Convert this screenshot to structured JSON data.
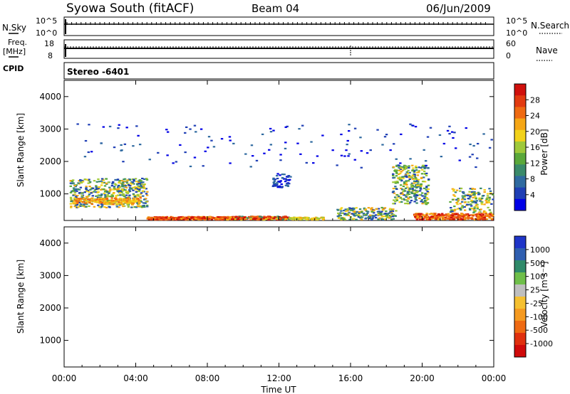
{
  "header": {
    "title": "Syowa South (fitACF)",
    "beam": "Beam 04",
    "date": "06/Jun/2009"
  },
  "top_panels": {
    "nsky_label": "N.Sky",
    "nsearch_label": "N.Search",
    "freq_label": "Freq.",
    "freq_unit": "[MHz]",
    "nave_label": "Nave",
    "cpid_label": "CPID",
    "cpid_value": "Stereo -6401",
    "nsky_ticks": [
      "10^5",
      "10^0"
    ],
    "nsearch_ticks": [
      "10^5",
      "10^0"
    ],
    "freq_ticks": [
      "18",
      "8"
    ],
    "nave_ticks": [
      "60",
      "0"
    ]
  },
  "chart_data": [
    {
      "type": "heatmap",
      "name": "power-panel",
      "ylabel": "Slant Range [km]",
      "xlim": [
        0,
        24
      ],
      "ylim": [
        180,
        4500
      ],
      "yticks": [
        1000,
        2000,
        3000,
        4000
      ],
      "colorbar": {
        "label": "Power [dB]",
        "ticks": [
          "4",
          "8",
          "12",
          "16",
          "20",
          "24",
          "28"
        ],
        "colors": [
          "#0000e6",
          "#1f3fb5",
          "#2f6aa0",
          "#3a8a6a",
          "#5aa83a",
          "#9fc93a",
          "#f2d21a",
          "#f5a615",
          "#ef6a12",
          "#e23a10",
          "#d0100c"
        ]
      }
    },
    {
      "type": "heatmap",
      "name": "velocity-panel",
      "ylabel": "Slant Range [km]",
      "xlabel": "Time UT",
      "xlim": [
        0,
        24
      ],
      "ylim": [
        180,
        4500
      ],
      "yticks": [
        1000,
        2000,
        3000,
        4000
      ],
      "xticks": [
        "00:00",
        "04:00",
        "08:00",
        "12:00",
        "16:00",
        "20:00",
        "00:00"
      ],
      "colorbar": {
        "label": "Velocity [m s⁻¹]",
        "ticks": [
          "1000",
          "500",
          "100",
          "25",
          "-25",
          "-100",
          "-500",
          "-1000"
        ],
        "colors": [
          "#1f35c8",
          "#2f5fb0",
          "#2f8a6a",
          "#6fbf4a",
          "#bfbfbf",
          "#f5c030",
          "#f59a20",
          "#ef6a12",
          "#e0300e",
          "#d00a0a"
        ]
      }
    }
  ]
}
